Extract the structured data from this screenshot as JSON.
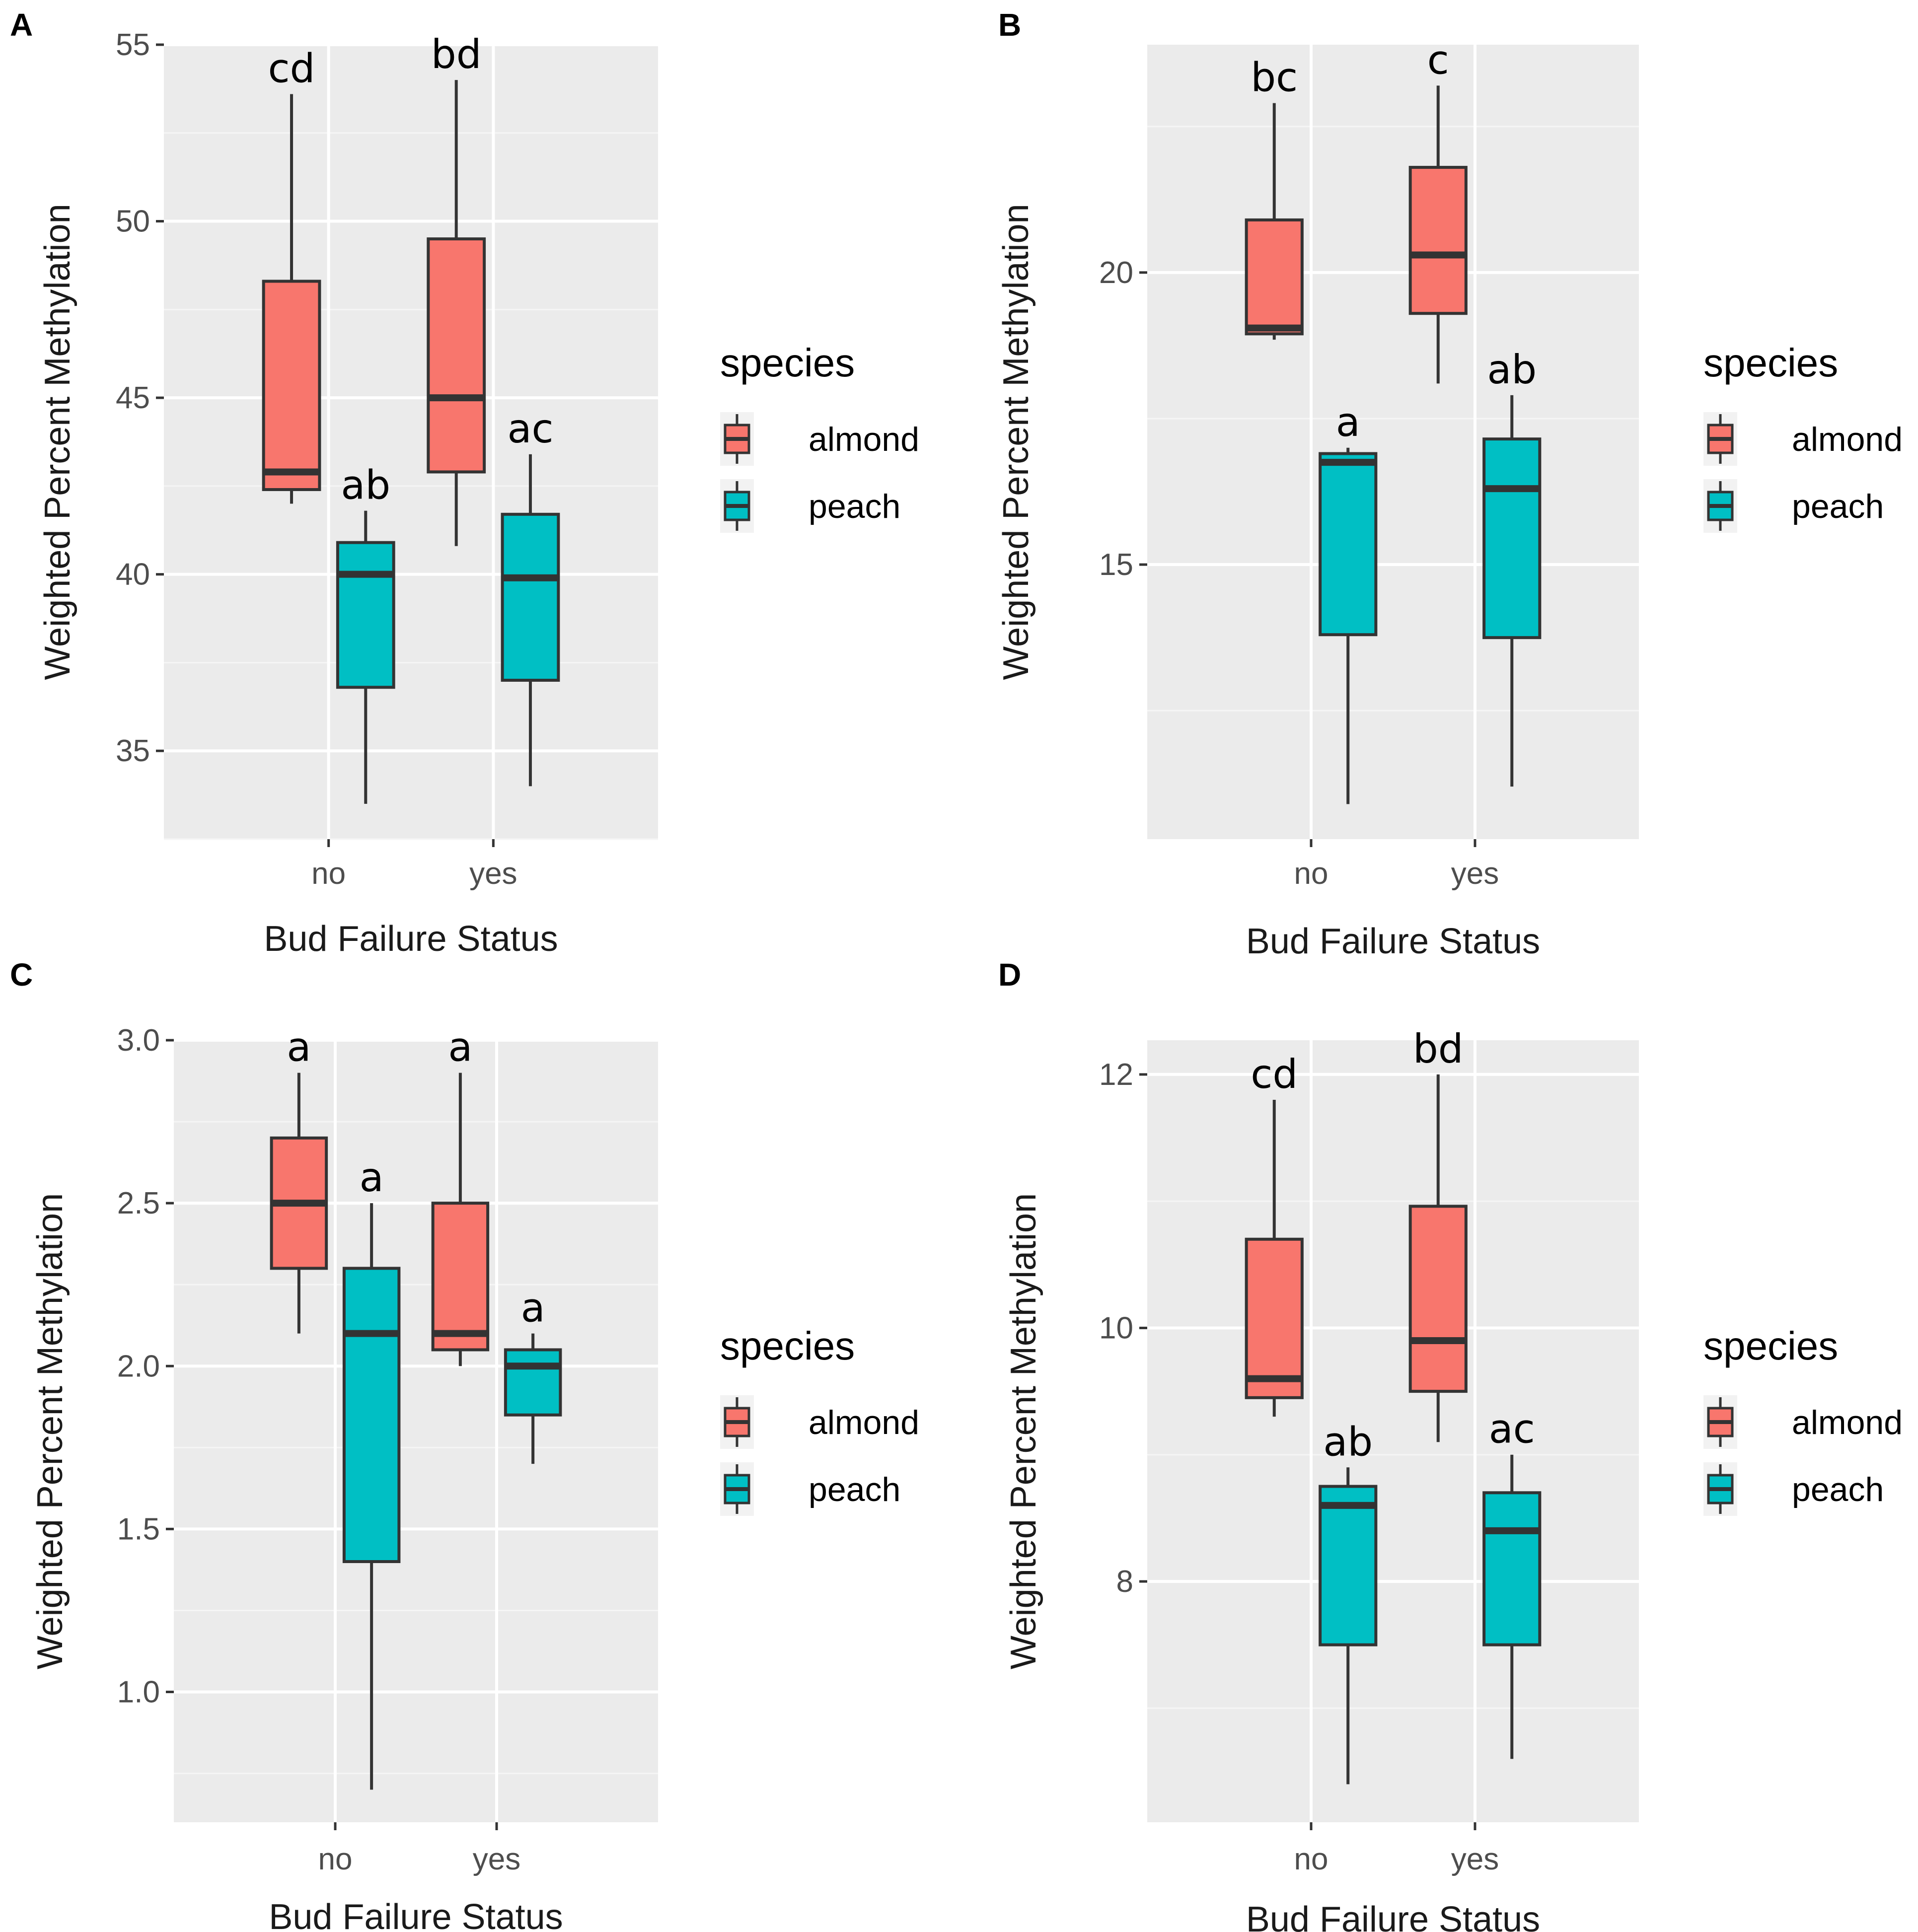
{
  "colors": {
    "panel_bg": "#ebebeb",
    "grid_major": "#ffffff",
    "grid_minor": "#f5f5f5",
    "box_outline": "#333333",
    "almond": "#f8766d",
    "peach": "#00bfc4",
    "legend_key_bg": "#f2f2f2"
  },
  "chart_data": [
    {
      "panel": "A",
      "type": "boxplot",
      "xlabel": "Bud Failure Status",
      "ylabel": "Weighted Percent Methylation",
      "categories": [
        "no",
        "yes"
      ],
      "legend": {
        "title": "species",
        "entries": [
          "almond",
          "peach"
        ]
      },
      "ylim": [
        32.5,
        55.0
      ],
      "yticks": [
        35,
        40,
        45,
        50,
        55
      ],
      "yticklabels": [
        "35",
        "40",
        "45",
        "50",
        "55"
      ],
      "series": [
        {
          "name": "almond",
          "boxes": [
            {
              "category": "no",
              "min": 42.0,
              "q1": 42.4,
              "median": 42.9,
              "q3": 48.3,
              "max": 53.6,
              "sig": "cd"
            },
            {
              "category": "yes",
              "min": 40.8,
              "q1": 42.9,
              "median": 45.0,
              "q3": 49.5,
              "max": 54.0,
              "sig": "bd"
            }
          ]
        },
        {
          "name": "peach",
          "boxes": [
            {
              "category": "no",
              "min": 33.5,
              "q1": 36.8,
              "median": 40.0,
              "q3": 40.9,
              "max": 41.8,
              "sig": "ab"
            },
            {
              "category": "yes",
              "min": 34.0,
              "q1": 37.0,
              "median": 39.9,
              "q3": 41.7,
              "max": 43.4,
              "sig": "ac"
            }
          ]
        }
      ]
    },
    {
      "panel": "B",
      "type": "boxplot",
      "xlabel": "Bud Failure Status",
      "ylabel": "Weighted Percent Methylation",
      "categories": [
        "no",
        "yes"
      ],
      "legend": {
        "title": "species",
        "entries": [
          "almond",
          "peach"
        ]
      },
      "ylim": [
        10.3,
        23.9
      ],
      "yticks": [
        15,
        20
      ],
      "yticklabels": [
        "15",
        "20"
      ],
      "series": [
        {
          "name": "almond",
          "boxes": [
            {
              "category": "no",
              "min": 18.85,
              "q1": 18.95,
              "median": 19.05,
              "q3": 20.9,
              "max": 22.9,
              "sig": "bc"
            },
            {
              "category": "yes",
              "min": 18.1,
              "q1": 19.3,
              "median": 20.3,
              "q3": 21.8,
              "max": 23.2,
              "sig": "c"
            }
          ]
        },
        {
          "name": "peach",
          "boxes": [
            {
              "category": "no",
              "min": 10.9,
              "q1": 13.8,
              "median": 16.75,
              "q3": 16.9,
              "max": 17.0,
              "sig": "a"
            },
            {
              "category": "yes",
              "min": 11.2,
              "q1": 13.75,
              "median": 16.3,
              "q3": 17.15,
              "max": 17.9,
              "sig": "ab"
            }
          ]
        }
      ]
    },
    {
      "panel": "C",
      "type": "boxplot",
      "xlabel": "Bud Failure Status",
      "ylabel": "Weighted Percent Methylation",
      "categories": [
        "no",
        "yes"
      ],
      "legend": {
        "title": "species",
        "entries": [
          "almond",
          "peach"
        ]
      },
      "ylim": [
        0.6,
        3.0
      ],
      "yticks": [
        1.0,
        1.5,
        2.0,
        2.5,
        3.0
      ],
      "yticklabels": [
        "1.0",
        "1.5",
        "2.0",
        "2.5",
        "3.0"
      ],
      "series": [
        {
          "name": "almond",
          "boxes": [
            {
              "category": "no",
              "min": 2.1,
              "q1": 2.3,
              "median": 2.5,
              "q3": 2.7,
              "max": 2.9,
              "sig": "a"
            },
            {
              "category": "yes",
              "min": 2.0,
              "q1": 2.05,
              "median": 2.1,
              "q3": 2.5,
              "max": 2.9,
              "sig": "a"
            }
          ]
        },
        {
          "name": "peach",
          "boxes": [
            {
              "category": "no",
              "min": 0.7,
              "q1": 1.4,
              "median": 2.1,
              "q3": 2.3,
              "max": 2.5,
              "sig": "a"
            },
            {
              "category": "yes",
              "min": 1.7,
              "q1": 1.85,
              "median": 2.0,
              "q3": 2.05,
              "max": 2.1,
              "sig": "a"
            }
          ]
        }
      ]
    },
    {
      "panel": "D",
      "type": "boxplot",
      "xlabel": "Bud Failure Status",
      "ylabel": "Weighted Percent Methylation",
      "categories": [
        "no",
        "yes"
      ],
      "legend": {
        "title": "species",
        "entries": [
          "almond",
          "peach"
        ]
      },
      "ylim": [
        6.1,
        12.27
      ],
      "yticks": [
        8,
        10,
        12
      ],
      "yticklabels": [
        "8",
        "10",
        "12"
      ],
      "series": [
        {
          "name": "almond",
          "boxes": [
            {
              "category": "no",
              "min": 9.3,
              "q1": 9.45,
              "median": 9.6,
              "q3": 10.7,
              "max": 11.8,
              "sig": "cd"
            },
            {
              "category": "yes",
              "min": 9.1,
              "q1": 9.5,
              "median": 9.9,
              "q3": 10.96,
              "max": 12.0,
              "sig": "bd"
            }
          ]
        },
        {
          "name": "peach",
          "boxes": [
            {
              "category": "no",
              "min": 6.4,
              "q1": 7.5,
              "median": 8.6,
              "q3": 8.75,
              "max": 8.9,
              "sig": "ab"
            },
            {
              "category": "yes",
              "min": 6.6,
              "q1": 7.5,
              "median": 8.4,
              "q3": 8.7,
              "max": 9.0,
              "sig": "ac"
            }
          ]
        }
      ]
    }
  ]
}
